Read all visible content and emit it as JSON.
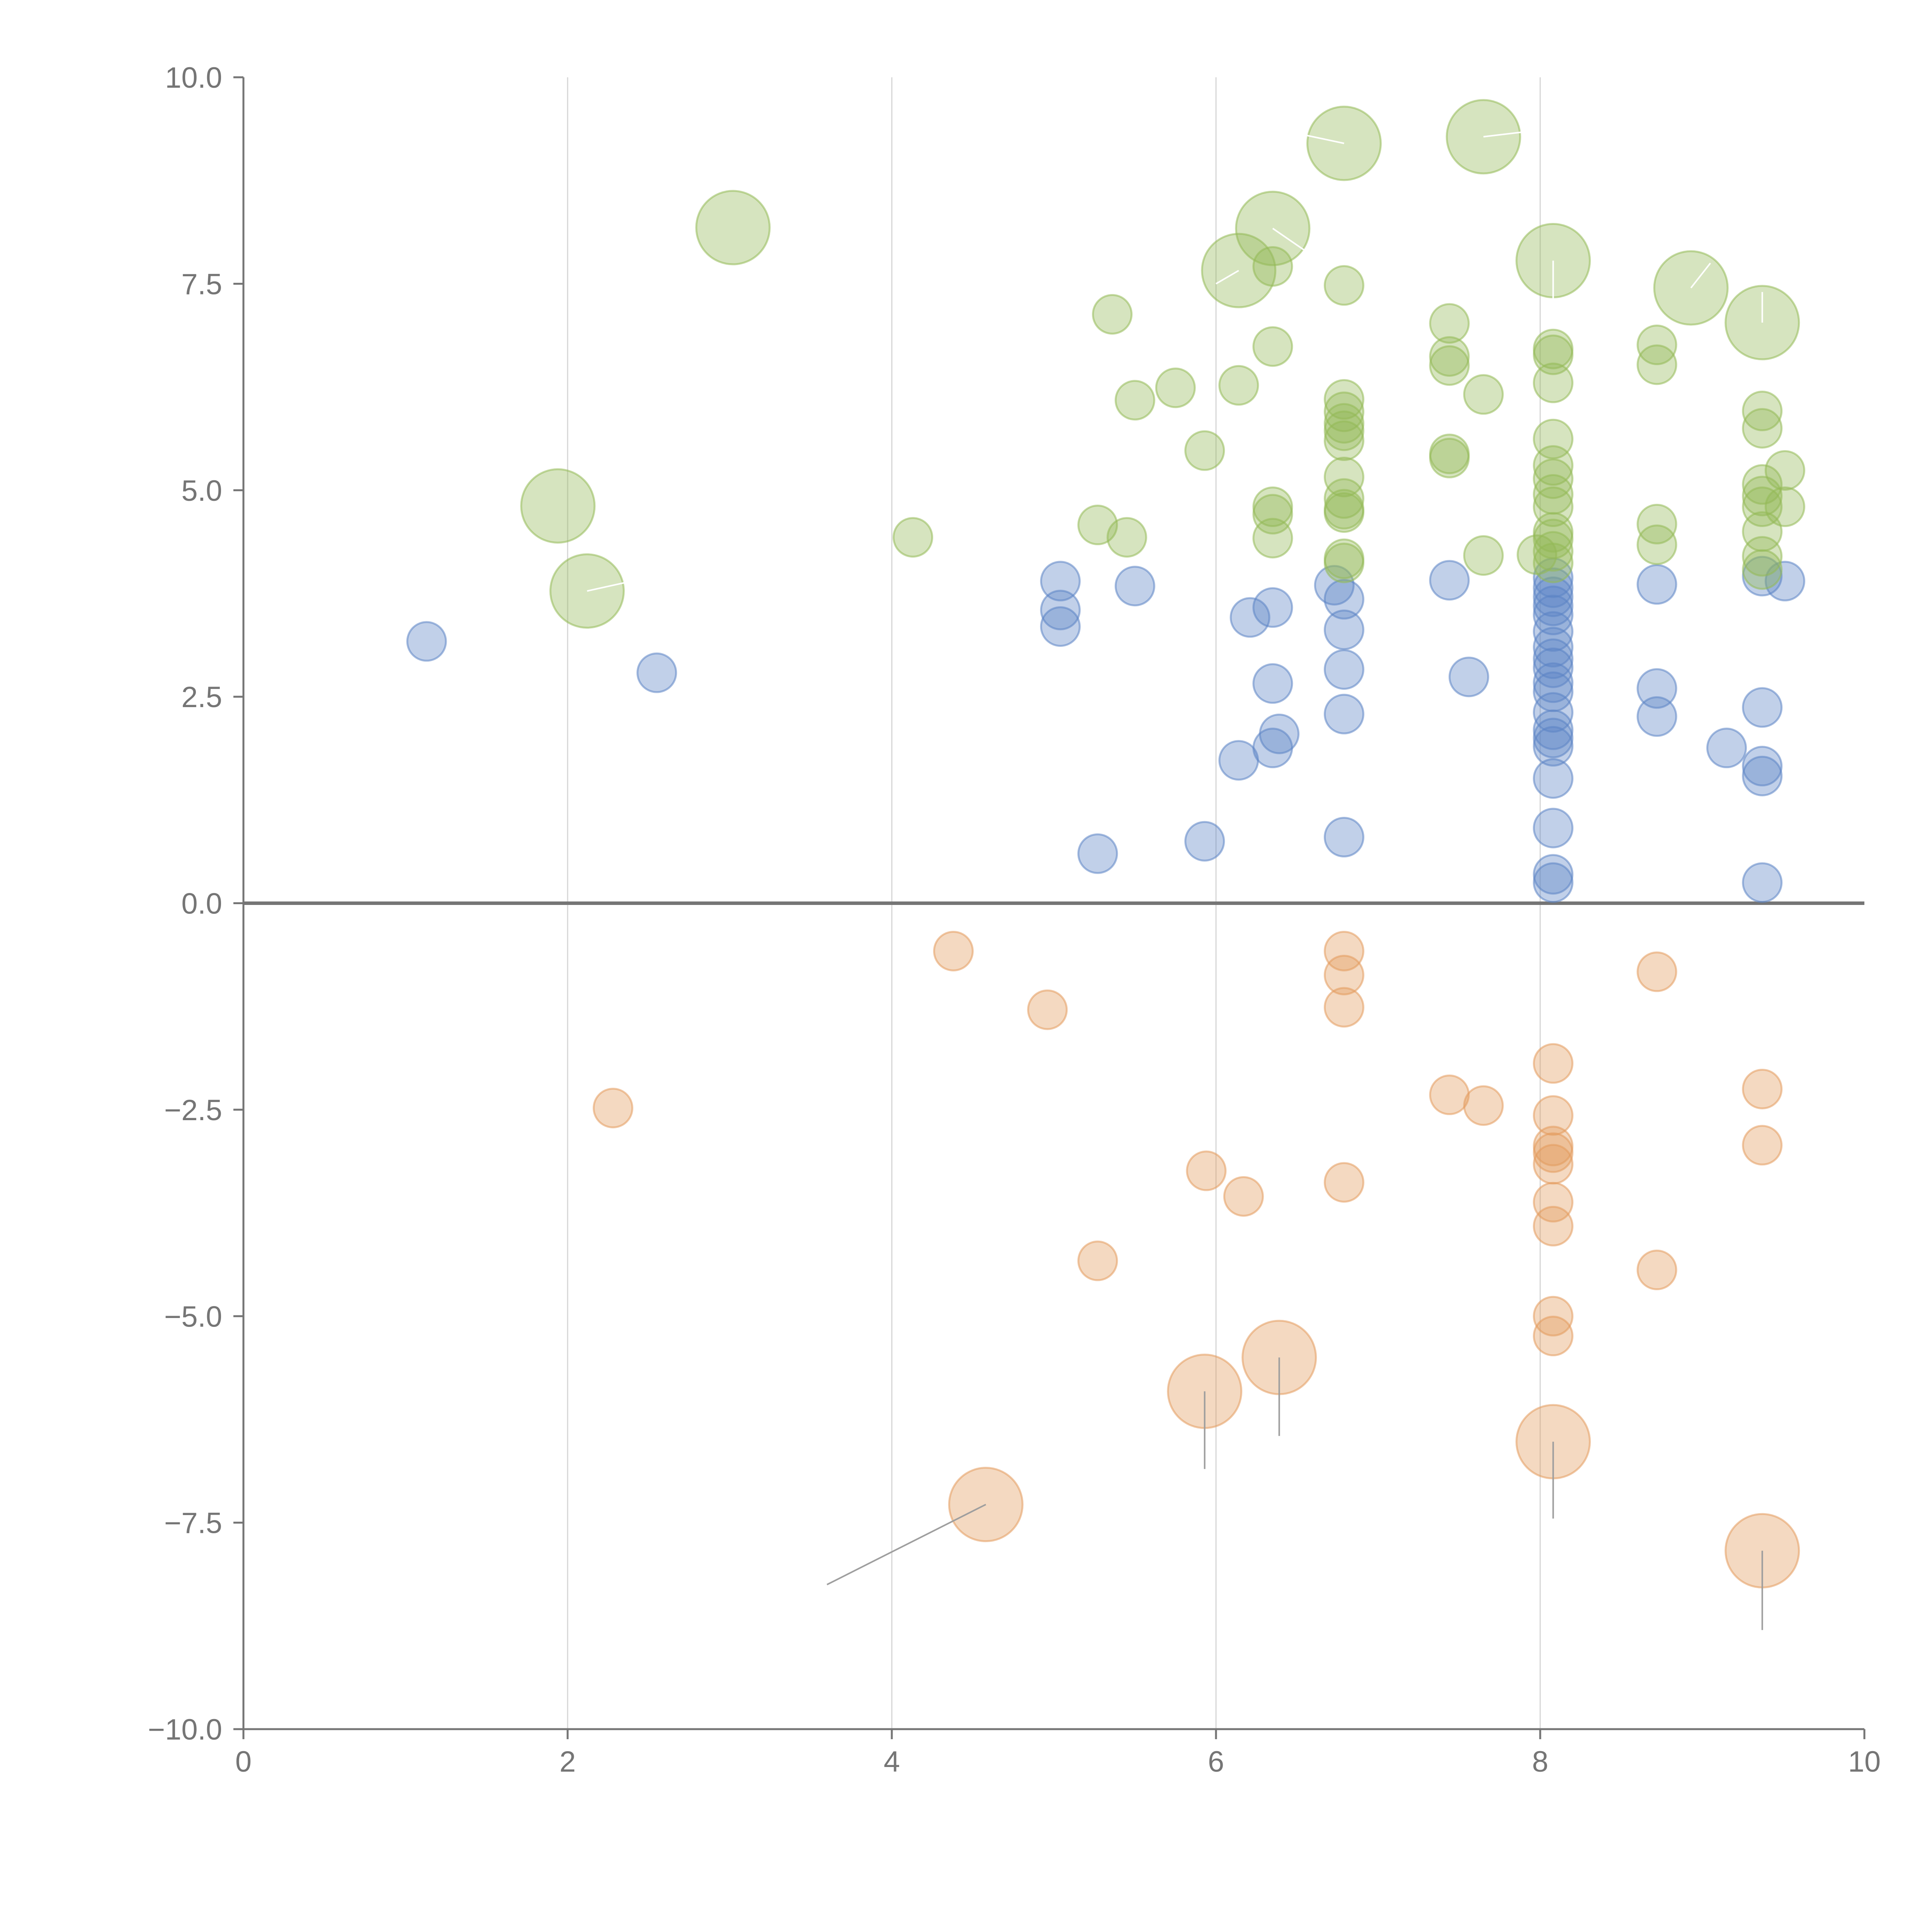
{
  "chart_data": {
    "type": "scatter",
    "title": "",
    "xlabel": "",
    "ylabel": "",
    "xlim": [
      0,
      10
    ],
    "ylim": [
      -10,
      10
    ],
    "x_ticks": [
      0,
      2,
      4,
      6,
      8,
      10
    ],
    "x_tick_labels": [
      "0",
      "2",
      "4",
      "6",
      "8",
      "10"
    ],
    "y_ticks": [
      10,
      7.5,
      5,
      2.5,
      0,
      -2.5,
      -5,
      -7.5,
      -10
    ],
    "y_tick_labels": [
      "10.0",
      "7.5",
      "5.0",
      "2.5",
      "0.0",
      "−2.5",
      "−5.0",
      "−7.5",
      "−10.0"
    ],
    "vertical_grid": true,
    "horizontal_grid": false,
    "reference_line_y": 0,
    "legend": "none",
    "series": [
      {
        "name": "blue",
        "color": "#5b84c4",
        "points": [
          [
            1.13,
            3.17
          ],
          [
            2.55,
            2.79
          ],
          [
            5.04,
            3.9
          ],
          [
            5.04,
            3.55
          ],
          [
            5.04,
            3.35
          ],
          [
            5.27,
            0.6
          ],
          [
            5.5,
            3.84
          ],
          [
            5.93,
            0.75
          ],
          [
            6.14,
            1.73
          ],
          [
            6.21,
            3.46
          ],
          [
            6.35,
            3.58
          ],
          [
            6.35,
            2.66
          ],
          [
            6.35,
            1.88
          ],
          [
            6.39,
            2.05
          ],
          [
            6.73,
            3.85
          ],
          [
            6.79,
            3.68
          ],
          [
            6.79,
            3.31
          ],
          [
            6.79,
            2.83
          ],
          [
            6.79,
            2.29
          ],
          [
            6.79,
            0.8
          ],
          [
            7.44,
            3.91
          ],
          [
            7.56,
            2.74
          ],
          [
            8.08,
            3.94
          ],
          [
            8.08,
            3.82
          ],
          [
            8.08,
            3.71
          ],
          [
            8.08,
            3.6
          ],
          [
            8.08,
            3.49
          ],
          [
            8.08,
            3.29
          ],
          [
            8.08,
            3.1
          ],
          [
            8.08,
            2.96
          ],
          [
            8.08,
            2.85
          ],
          [
            8.08,
            2.67
          ],
          [
            8.08,
            2.56
          ],
          [
            8.08,
            2.31
          ],
          [
            8.08,
            2.1
          ],
          [
            8.08,
            2.0
          ],
          [
            8.08,
            1.9
          ],
          [
            8.08,
            1.51
          ],
          [
            8.08,
            0.91
          ],
          [
            8.08,
            0.35
          ],
          [
            8.08,
            0.25
          ],
          [
            8.72,
            3.86
          ],
          [
            8.72,
            2.6
          ],
          [
            8.72,
            2.26
          ],
          [
            9.15,
            1.88
          ],
          [
            9.37,
            3.96
          ],
          [
            9.37,
            2.37
          ],
          [
            9.37,
            1.66
          ],
          [
            9.37,
            1.54
          ],
          [
            9.37,
            0.25
          ],
          [
            9.51,
            3.9
          ]
        ]
      },
      {
        "name": "green",
        "color": "#93b956",
        "points": [
          [
            1.94,
            4.81
          ],
          [
            2.12,
            3.78
          ],
          [
            3.02,
            8.18
          ],
          [
            4.13,
            4.43
          ],
          [
            5.27,
            4.58
          ],
          [
            5.36,
            7.13
          ],
          [
            5.45,
            4.43
          ],
          [
            5.5,
            6.09
          ],
          [
            5.75,
            6.24
          ],
          [
            5.93,
            5.48
          ],
          [
            6.14,
            7.66
          ],
          [
            6.14,
            6.27
          ],
          [
            6.35,
            8.17
          ],
          [
            6.35,
            7.71
          ],
          [
            6.35,
            6.74
          ],
          [
            6.35,
            4.8
          ],
          [
            6.35,
            4.71
          ],
          [
            6.35,
            4.42
          ],
          [
            6.79,
            9.2
          ],
          [
            6.79,
            7.48
          ],
          [
            6.79,
            6.1
          ],
          [
            6.79,
            5.95
          ],
          [
            6.79,
            5.81
          ],
          [
            6.79,
            5.72
          ],
          [
            6.79,
            5.6
          ],
          [
            6.79,
            5.16
          ],
          [
            6.79,
            4.9
          ],
          [
            6.79,
            4.77
          ],
          [
            6.79,
            4.73
          ],
          [
            6.79,
            4.17
          ],
          [
            6.79,
            4.12
          ],
          [
            7.44,
            7.02
          ],
          [
            7.44,
            6.62
          ],
          [
            7.44,
            6.51
          ],
          [
            7.44,
            5.44
          ],
          [
            7.44,
            5.39
          ],
          [
            7.65,
            9.28
          ],
          [
            7.65,
            6.16
          ],
          [
            7.65,
            4.21
          ],
          [
            7.98,
            4.22
          ],
          [
            8.08,
            7.78
          ],
          [
            8.08,
            6.71
          ],
          [
            8.08,
            6.64
          ],
          [
            8.08,
            6.3
          ],
          [
            8.08,
            5.62
          ],
          [
            8.08,
            5.3
          ],
          [
            8.08,
            5.14
          ],
          [
            8.08,
            4.95
          ],
          [
            8.08,
            4.8
          ],
          [
            8.08,
            4.49
          ],
          [
            8.08,
            4.41
          ],
          [
            8.08,
            4.26
          ],
          [
            8.08,
            4.12
          ],
          [
            8.72,
            6.76
          ],
          [
            8.72,
            6.52
          ],
          [
            8.72,
            4.59
          ],
          [
            8.72,
            4.34
          ],
          [
            8.93,
            7.45
          ],
          [
            9.37,
            7.03
          ],
          [
            9.37,
            5.96
          ],
          [
            9.37,
            5.75
          ],
          [
            9.37,
            5.07
          ],
          [
            9.37,
            4.93
          ],
          [
            9.37,
            4.8
          ],
          [
            9.37,
            4.5
          ],
          [
            9.37,
            4.2
          ],
          [
            9.37,
            4.04
          ],
          [
            9.51,
            5.24
          ],
          [
            9.51,
            4.8
          ]
        ]
      },
      {
        "name": "orange",
        "color": "#e39a5d",
        "points": [
          [
            2.28,
            -2.48
          ],
          [
            4.38,
            -0.58
          ],
          [
            4.58,
            -7.28
          ],
          [
            4.96,
            -1.29
          ],
          [
            5.27,
            -4.33
          ],
          [
            5.93,
            -5.91
          ],
          [
            5.94,
            -3.24
          ],
          [
            6.17,
            -3.55
          ],
          [
            6.39,
            -5.5
          ],
          [
            6.79,
            -0.58
          ],
          [
            6.79,
            -0.87
          ],
          [
            6.79,
            -1.26
          ],
          [
            6.79,
            -3.38
          ],
          [
            7.44,
            -2.32
          ],
          [
            7.65,
            -2.45
          ],
          [
            8.08,
            -1.94
          ],
          [
            8.08,
            -2.57
          ],
          [
            8.08,
            -2.94
          ],
          [
            8.08,
            -3.02
          ],
          [
            8.08,
            -3.16
          ],
          [
            8.08,
            -3.62
          ],
          [
            8.08,
            -3.91
          ],
          [
            8.08,
            -5.0
          ],
          [
            8.08,
            -5.24
          ],
          [
            8.08,
            -6.52
          ],
          [
            8.72,
            -0.83
          ],
          [
            8.72,
            -4.44
          ],
          [
            9.37,
            -2.25
          ],
          [
            9.37,
            -2.93
          ],
          [
            9.37,
            -7.84
          ]
        ]
      }
    ],
    "large_points": [
      [
        1.94,
        4.81
      ],
      [
        2.12,
        3.78
      ],
      [
        3.02,
        8.18
      ],
      [
        6.14,
        7.66
      ],
      [
        6.35,
        8.17
      ],
      [
        6.79,
        9.2
      ],
      [
        7.65,
        9.28
      ],
      [
        8.08,
        7.78
      ],
      [
        8.93,
        7.45
      ],
      [
        9.37,
        7.03
      ],
      [
        4.58,
        -7.28
      ],
      [
        5.93,
        -5.91
      ],
      [
        6.39,
        -5.5
      ],
      [
        8.08,
        -6.52
      ],
      [
        9.37,
        -7.84
      ]
    ],
    "annotation_leaders": [
      {
        "from": [
          2.12,
          3.78
        ],
        "to": [
          2.35,
          3.88
        ],
        "style": "light"
      },
      {
        "from": [
          6.14,
          7.66
        ],
        "to": [
          6.0,
          7.5
        ],
        "style": "light"
      },
      {
        "from": [
          6.35,
          8.17
        ],
        "to": [
          6.55,
          7.9
        ],
        "style": "light"
      },
      {
        "from": [
          6.79,
          9.2
        ],
        "to": [
          6.55,
          9.3
        ],
        "style": "light"
      },
      {
        "from": [
          7.65,
          9.28
        ],
        "to": [
          7.95,
          9.35
        ],
        "style": "light"
      },
      {
        "from": [
          8.08,
          7.78
        ],
        "to": [
          8.08,
          7.05
        ],
        "style": "light"
      },
      {
        "from": [
          8.93,
          7.45
        ],
        "to": [
          9.05,
          7.75
        ],
        "style": "light"
      },
      {
        "from": [
          9.37,
          7.03
        ],
        "to": [
          9.37,
          7.4
        ],
        "style": "light"
      },
      {
        "from": [
          4.58,
          -7.28
        ],
        "to": [
          3.6,
          -8.25
        ],
        "style": "dark"
      },
      {
        "from": [
          5.93,
          -5.91
        ],
        "to": [
          5.93,
          -6.85
        ],
        "style": "dark"
      },
      {
        "from": [
          6.39,
          -5.5
        ],
        "to": [
          6.39,
          -6.45
        ],
        "style": "dark"
      },
      {
        "from": [
          8.08,
          -6.52
        ],
        "to": [
          8.08,
          -7.45
        ],
        "style": "dark"
      },
      {
        "from": [
          9.37,
          -7.84
        ],
        "to": [
          9.37,
          -8.8
        ],
        "style": "dark"
      }
    ]
  }
}
